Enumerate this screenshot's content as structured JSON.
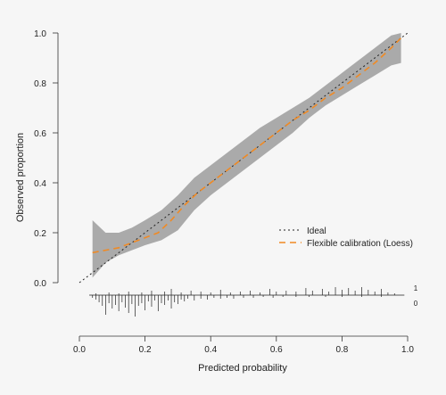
{
  "chart_data": {
    "type": "line",
    "xlabel": "Predicted probability",
    "ylabel": "Observed proportion",
    "xlim": [
      0.0,
      1.0
    ],
    "ylim": [
      0.0,
      1.0
    ],
    "x_ticks": [
      "0.0",
      "0.2",
      "0.4",
      "0.6",
      "0.8",
      "1.0"
    ],
    "y_ticks": [
      "0.0",
      "0.2",
      "0.4",
      "0.6",
      "0.8",
      "1.0"
    ],
    "grid": false,
    "legend_position": "center-right",
    "series": [
      {
        "name": "Ideal",
        "style": "dotted",
        "color": "#222222",
        "x": [
          0.0,
          1.0
        ],
        "y": [
          0.0,
          1.0
        ]
      },
      {
        "name": "Flexible calibration (Loess)",
        "style": "dashed",
        "color": "#f08a24",
        "x": [
          0.04,
          0.08,
          0.12,
          0.16,
          0.2,
          0.24,
          0.28,
          0.32,
          0.36,
          0.4,
          0.45,
          0.5,
          0.55,
          0.6,
          0.65,
          0.7,
          0.75,
          0.8,
          0.85,
          0.9,
          0.95,
          0.98
        ],
        "y": [
          0.12,
          0.13,
          0.14,
          0.16,
          0.18,
          0.2,
          0.25,
          0.31,
          0.36,
          0.4,
          0.45,
          0.5,
          0.55,
          0.6,
          0.65,
          0.69,
          0.74,
          0.78,
          0.83,
          0.88,
          0.94,
          0.98
        ]
      }
    ],
    "confidence_band": {
      "color": "#aaaaaa",
      "x": [
        0.04,
        0.08,
        0.12,
        0.16,
        0.2,
        0.25,
        0.3,
        0.35,
        0.4,
        0.45,
        0.5,
        0.55,
        0.6,
        0.65,
        0.7,
        0.75,
        0.8,
        0.85,
        0.9,
        0.95,
        0.98
      ],
      "lower": [
        0.02,
        0.08,
        0.11,
        0.13,
        0.15,
        0.17,
        0.21,
        0.29,
        0.35,
        0.4,
        0.45,
        0.5,
        0.55,
        0.6,
        0.66,
        0.71,
        0.75,
        0.79,
        0.83,
        0.87,
        0.88
      ],
      "upper": [
        0.25,
        0.2,
        0.2,
        0.22,
        0.25,
        0.29,
        0.35,
        0.42,
        0.47,
        0.52,
        0.57,
        0.62,
        0.66,
        0.7,
        0.74,
        0.79,
        0.84,
        0.89,
        0.94,
        0.99,
        1.0
      ]
    },
    "rug": {
      "labels": [
        "1",
        "0"
      ],
      "positives": [
        {
          "x": 0.05,
          "h": 2
        },
        {
          "x": 0.09,
          "h": 3
        },
        {
          "x": 0.12,
          "h": 2
        },
        {
          "x": 0.15,
          "h": 4
        },
        {
          "x": 0.19,
          "h": 3
        },
        {
          "x": 0.22,
          "h": 5
        },
        {
          "x": 0.26,
          "h": 4
        },
        {
          "x": 0.28,
          "h": 7
        },
        {
          "x": 0.31,
          "h": 3
        },
        {
          "x": 0.34,
          "h": 5
        },
        {
          "x": 0.37,
          "h": 4
        },
        {
          "x": 0.4,
          "h": 3
        },
        {
          "x": 0.43,
          "h": 6
        },
        {
          "x": 0.46,
          "h": 3
        },
        {
          "x": 0.49,
          "h": 4
        },
        {
          "x": 0.52,
          "h": 5
        },
        {
          "x": 0.55,
          "h": 3
        },
        {
          "x": 0.58,
          "h": 7
        },
        {
          "x": 0.6,
          "h": 4
        },
        {
          "x": 0.63,
          "h": 5
        },
        {
          "x": 0.66,
          "h": 4
        },
        {
          "x": 0.69,
          "h": 8
        },
        {
          "x": 0.71,
          "h": 5
        },
        {
          "x": 0.74,
          "h": 7
        },
        {
          "x": 0.76,
          "h": 4
        },
        {
          "x": 0.78,
          "h": 9
        },
        {
          "x": 0.8,
          "h": 6
        },
        {
          "x": 0.82,
          "h": 8
        },
        {
          "x": 0.84,
          "h": 5
        },
        {
          "x": 0.86,
          "h": 9
        },
        {
          "x": 0.88,
          "h": 6
        },
        {
          "x": 0.9,
          "h": 4
        },
        {
          "x": 0.92,
          "h": 7
        },
        {
          "x": 0.94,
          "h": 3
        },
        {
          "x": 0.96,
          "h": 2
        }
      ],
      "negatives": [
        {
          "x": 0.04,
          "h": 3
        },
        {
          "x": 0.05,
          "h": 5
        },
        {
          "x": 0.06,
          "h": 8
        },
        {
          "x": 0.07,
          "h": 12
        },
        {
          "x": 0.08,
          "h": 22
        },
        {
          "x": 0.09,
          "h": 9
        },
        {
          "x": 0.1,
          "h": 15
        },
        {
          "x": 0.11,
          "h": 11
        },
        {
          "x": 0.12,
          "h": 18
        },
        {
          "x": 0.13,
          "h": 8
        },
        {
          "x": 0.14,
          "h": 14
        },
        {
          "x": 0.15,
          "h": 20
        },
        {
          "x": 0.16,
          "h": 10
        },
        {
          "x": 0.17,
          "h": 24
        },
        {
          "x": 0.18,
          "h": 12
        },
        {
          "x": 0.19,
          "h": 9
        },
        {
          "x": 0.2,
          "h": 17
        },
        {
          "x": 0.21,
          "h": 7
        },
        {
          "x": 0.22,
          "h": 13
        },
        {
          "x": 0.23,
          "h": 6
        },
        {
          "x": 0.24,
          "h": 18
        },
        {
          "x": 0.25,
          "h": 9
        },
        {
          "x": 0.26,
          "h": 11
        },
        {
          "x": 0.27,
          "h": 6
        },
        {
          "x": 0.28,
          "h": 15
        },
        {
          "x": 0.29,
          "h": 8
        },
        {
          "x": 0.3,
          "h": 10
        },
        {
          "x": 0.31,
          "h": 5
        },
        {
          "x": 0.32,
          "h": 7
        },
        {
          "x": 0.33,
          "h": 4
        },
        {
          "x": 0.35,
          "h": 6
        },
        {
          "x": 0.37,
          "h": 4
        },
        {
          "x": 0.39,
          "h": 5
        },
        {
          "x": 0.41,
          "h": 3
        },
        {
          "x": 0.43,
          "h": 4
        },
        {
          "x": 0.45,
          "h": 3
        },
        {
          "x": 0.47,
          "h": 4
        },
        {
          "x": 0.5,
          "h": 3
        },
        {
          "x": 0.53,
          "h": 3
        },
        {
          "x": 0.56,
          "h": 2
        },
        {
          "x": 0.59,
          "h": 3
        },
        {
          "x": 0.62,
          "h": 2
        },
        {
          "x": 0.66,
          "h": 2
        },
        {
          "x": 0.7,
          "h": 2
        },
        {
          "x": 0.75,
          "h": 2
        },
        {
          "x": 0.8,
          "h": 2
        },
        {
          "x": 0.86,
          "h": 2
        },
        {
          "x": 0.92,
          "h": 2
        }
      ]
    }
  }
}
